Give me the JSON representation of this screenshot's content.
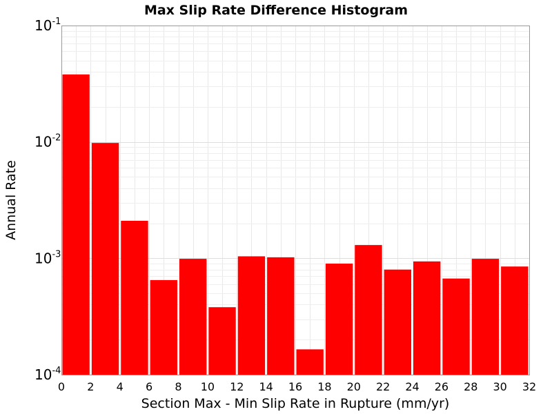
{
  "chart_data": {
    "type": "bar",
    "title": "Max Slip Rate Difference Histogram",
    "xlabel": "Section Max - Min Slip Rate in Rupture (mm/yr)",
    "ylabel": "Annual Rate",
    "yscale": "log",
    "xlim": [
      0,
      32
    ],
    "ylim": [
      0.0001,
      0.1
    ],
    "bar_width": 2,
    "bar_color": "#ff0000",
    "xticks": [
      0,
      2,
      4,
      6,
      8,
      10,
      12,
      14,
      16,
      18,
      20,
      22,
      24,
      26,
      28,
      30,
      32
    ],
    "yticks": [
      {
        "base": "10",
        "exp": "-4"
      },
      {
        "base": "10",
        "exp": "-3"
      },
      {
        "base": "10",
        "exp": "-2"
      },
      {
        "base": "10",
        "exp": "-1"
      }
    ],
    "grid": true,
    "bars": [
      {
        "x0": 0,
        "x1": 2,
        "value": 0.038
      },
      {
        "x0": 2,
        "x1": 4,
        "value": 0.0098
      },
      {
        "x0": 4,
        "x1": 6,
        "value": 0.0021
      },
      {
        "x0": 6,
        "x1": 8,
        "value": 0.00065
      },
      {
        "x0": 8,
        "x1": 10,
        "value": 0.00099
      },
      {
        "x0": 10,
        "x1": 12,
        "value": 0.00038
      },
      {
        "x0": 12,
        "x1": 14,
        "value": 0.00104
      },
      {
        "x0": 14,
        "x1": 16,
        "value": 0.00102
      },
      {
        "x0": 16,
        "x1": 18,
        "value": 0.000165
      },
      {
        "x0": 18,
        "x1": 20,
        "value": 0.0009
      },
      {
        "x0": 20,
        "x1": 22,
        "value": 0.0013
      },
      {
        "x0": 22,
        "x1": 24,
        "value": 0.0008
      },
      {
        "x0": 24,
        "x1": 26,
        "value": 0.00094
      },
      {
        "x0": 26,
        "x1": 28,
        "value": 0.00067
      },
      {
        "x0": 28,
        "x1": 30,
        "value": 0.00099
      },
      {
        "x0": 30,
        "x1": 32,
        "value": 0.00085
      }
    ]
  }
}
